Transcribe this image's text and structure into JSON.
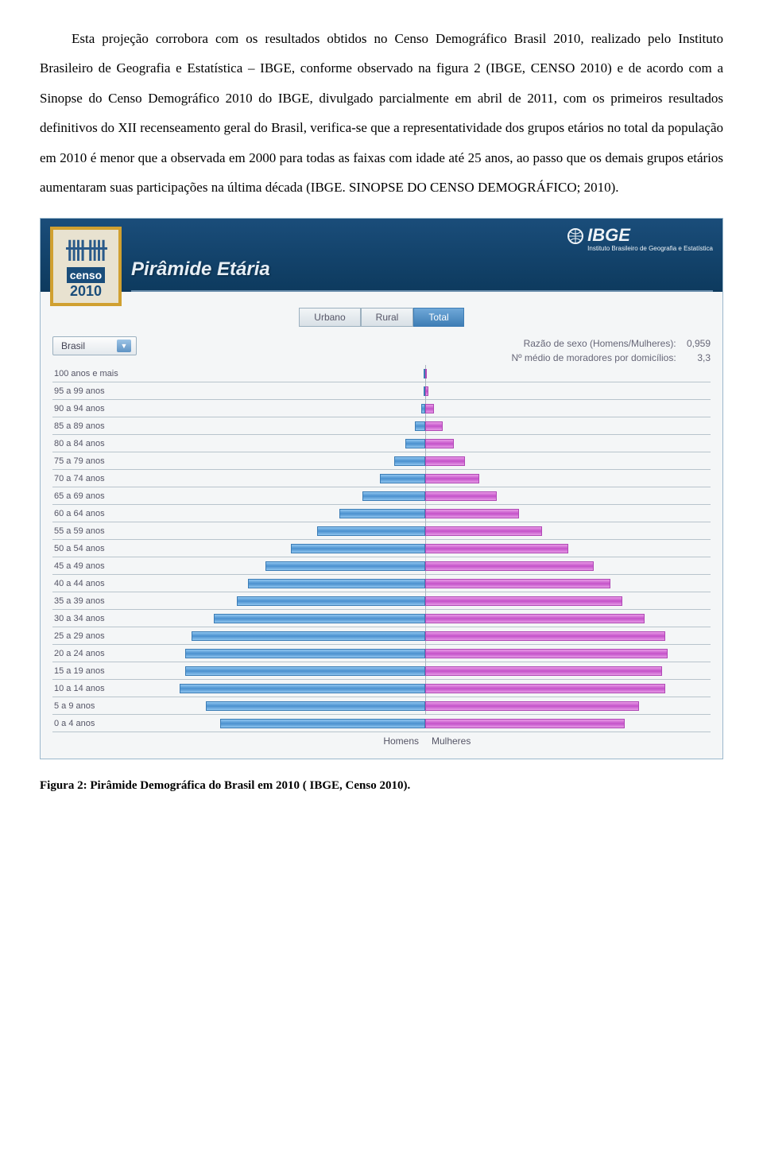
{
  "paragraph": "Esta projeção corrobora com os resultados obtidos no Censo Demográfico Brasil 2010, realizado pelo Instituto Brasileiro de Geografia e Estatística – IBGE, conforme observado na figura 2 (IBGE, CENSO 2010) e de acordo com a Sinopse do Censo Demográfico 2010 do IBGE, divulgado parcialmente em abril de 2011, com os primeiros resultados definitivos do XII recenseamento geral do Brasil, verifica-se que a representatividade dos grupos etários no total da população em 2010 é menor que a observada em 2000 para todas as faixas com idade até 25 anos, ao passo que os demais grupos etários aumentaram suas participações na última década (IBGE. SINOPSE DO CENSO DEMOGRÁFICO; 2010).",
  "caption": "Figura 2: Pirâmide Demográfica do Brasil em 2010 ( IBGE, Censo 2010).",
  "app": {
    "logo": {
      "tally": "卌卌",
      "word": "censo",
      "year": "2010"
    },
    "brand": {
      "name": "IBGE",
      "sub": "Instituto Brasileiro de Geografia e Estatística"
    },
    "title": "Pirâmide Etária",
    "tabs": [
      {
        "label": "Urbano",
        "active": false
      },
      {
        "label": "Rural",
        "active": false
      },
      {
        "label": "Total",
        "active": true
      }
    ],
    "dropdown": {
      "value": "Brasil"
    },
    "stats": {
      "line1_label": "Razão de sexo (Homens/Mulheres):",
      "line1_value": "0,959",
      "line2_label": "Nº médio de moradores por domicílios:",
      "line2_value": "3,3"
    },
    "legend": {
      "left": "Homens",
      "right": "Mulheres"
    },
    "pyramid": {
      "type": "population-pyramid",
      "male_color": "#4a90cf",
      "female_color": "#c452c9",
      "grid_color": "#b8c4cc",
      "background": "#f4f6f7",
      "label_fontsize": 11,
      "max_value": 100,
      "rows": [
        {
          "label": "100 anos e mais",
          "m": 0.2,
          "f": 0.4
        },
        {
          "label": "95 a 99 anos",
          "m": 0.5,
          "f": 1.0
        },
        {
          "label": "90 a 94 anos",
          "m": 1.5,
          "f": 3.0
        },
        {
          "label": "85 a 89 anos",
          "m": 3.5,
          "f": 6.0
        },
        {
          "label": "80 a 84 anos",
          "m": 7.0,
          "f": 10.0
        },
        {
          "label": "75 a 79 anos",
          "m": 11.0,
          "f": 14.0
        },
        {
          "label": "70 a 74 anos",
          "m": 16.0,
          "f": 19.0
        },
        {
          "label": "65 a 69 anos",
          "m": 22.0,
          "f": 25.0
        },
        {
          "label": "60 a 64 anos",
          "m": 30.0,
          "f": 33.0
        },
        {
          "label": "55 a 59 anos",
          "m": 38.0,
          "f": 41.0
        },
        {
          "label": "50 a 54 anos",
          "m": 47.0,
          "f": 50.0
        },
        {
          "label": "45 a 49 anos",
          "m": 56.0,
          "f": 59.0
        },
        {
          "label": "40 a 44 anos",
          "m": 62.0,
          "f": 65.0
        },
        {
          "label": "35 a 39 anos",
          "m": 66.0,
          "f": 69.0
        },
        {
          "label": "30 a 34 anos",
          "m": 74.0,
          "f": 77.0
        },
        {
          "label": "25 a 29 anos",
          "m": 82.0,
          "f": 84.0
        },
        {
          "label": "20 a 24 anos",
          "m": 84.0,
          "f": 85.0
        },
        {
          "label": "15 a 19 anos",
          "m": 84.0,
          "f": 83.0
        },
        {
          "label": "10 a 14 anos",
          "m": 86.0,
          "f": 84.0
        },
        {
          "label": "5 a 9 anos",
          "m": 77.0,
          "f": 75.0
        },
        {
          "label": "0 a 4 anos",
          "m": 72.0,
          "f": 70.0
        }
      ]
    }
  }
}
